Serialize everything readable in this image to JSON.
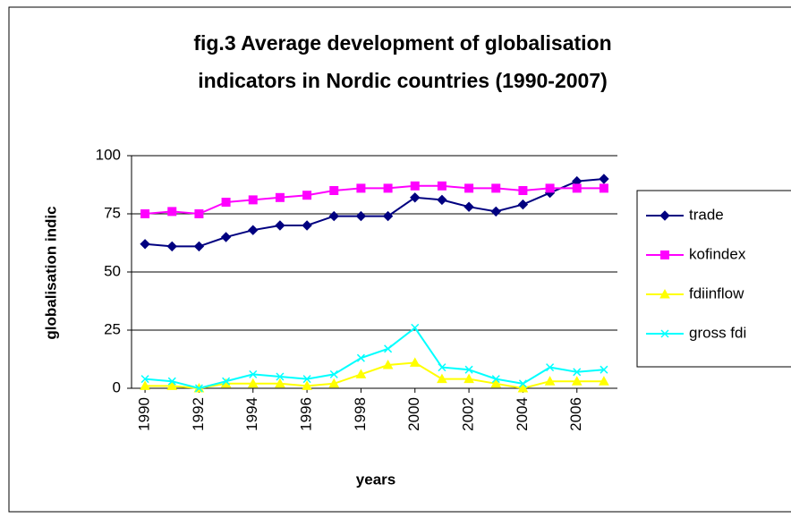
{
  "chart_data": {
    "type": "line",
    "title": [
      "fig.3 Average development of globalisation",
      "indicators in Nordic countries (1990-2007)"
    ],
    "x_label": "years",
    "y_label": "globalisation indic",
    "x": [
      1990,
      1991,
      1992,
      1993,
      1994,
      1995,
      1996,
      1997,
      1998,
      1999,
      2000,
      2001,
      2002,
      2003,
      2004,
      2005,
      2006,
      2007
    ],
    "xlim": [
      1989.5,
      2007.5
    ],
    "xticks": [
      1990,
      1992,
      1994,
      1996,
      1998,
      2000,
      2002,
      2004,
      2006
    ],
    "ylim": [
      0,
      100
    ],
    "yticks": [
      0,
      25,
      50,
      75,
      100
    ],
    "grid": true,
    "series": [
      {
        "name": "trade",
        "color": "#000080",
        "marker": "diamond",
        "values": [
          62,
          61,
          61,
          65,
          68,
          70,
          70,
          74,
          74,
          74,
          82,
          81,
          78,
          76,
          79,
          84,
          89,
          90
        ]
      },
      {
        "name": "kofindex",
        "color": "#ff00ff",
        "marker": "square",
        "values": [
          75,
          76,
          75,
          80,
          81,
          82,
          83,
          85,
          86,
          86,
          87,
          87,
          86,
          86,
          85,
          86,
          86,
          86
        ]
      },
      {
        "name": "fdiinflow",
        "color": "#ffff00",
        "marker": "triangle",
        "values": [
          1,
          1,
          0,
          2,
          2,
          2,
          1,
          2,
          6,
          10,
          11,
          4,
          4,
          2,
          0,
          3,
          3,
          3
        ]
      },
      {
        "name": "gross fdi",
        "color": "#00ffff",
        "marker": "x",
        "values": [
          4,
          3,
          0,
          3,
          6,
          5,
          4,
          6,
          13,
          17,
          26,
          9,
          8,
          4,
          2,
          9,
          7,
          8
        ]
      }
    ]
  }
}
